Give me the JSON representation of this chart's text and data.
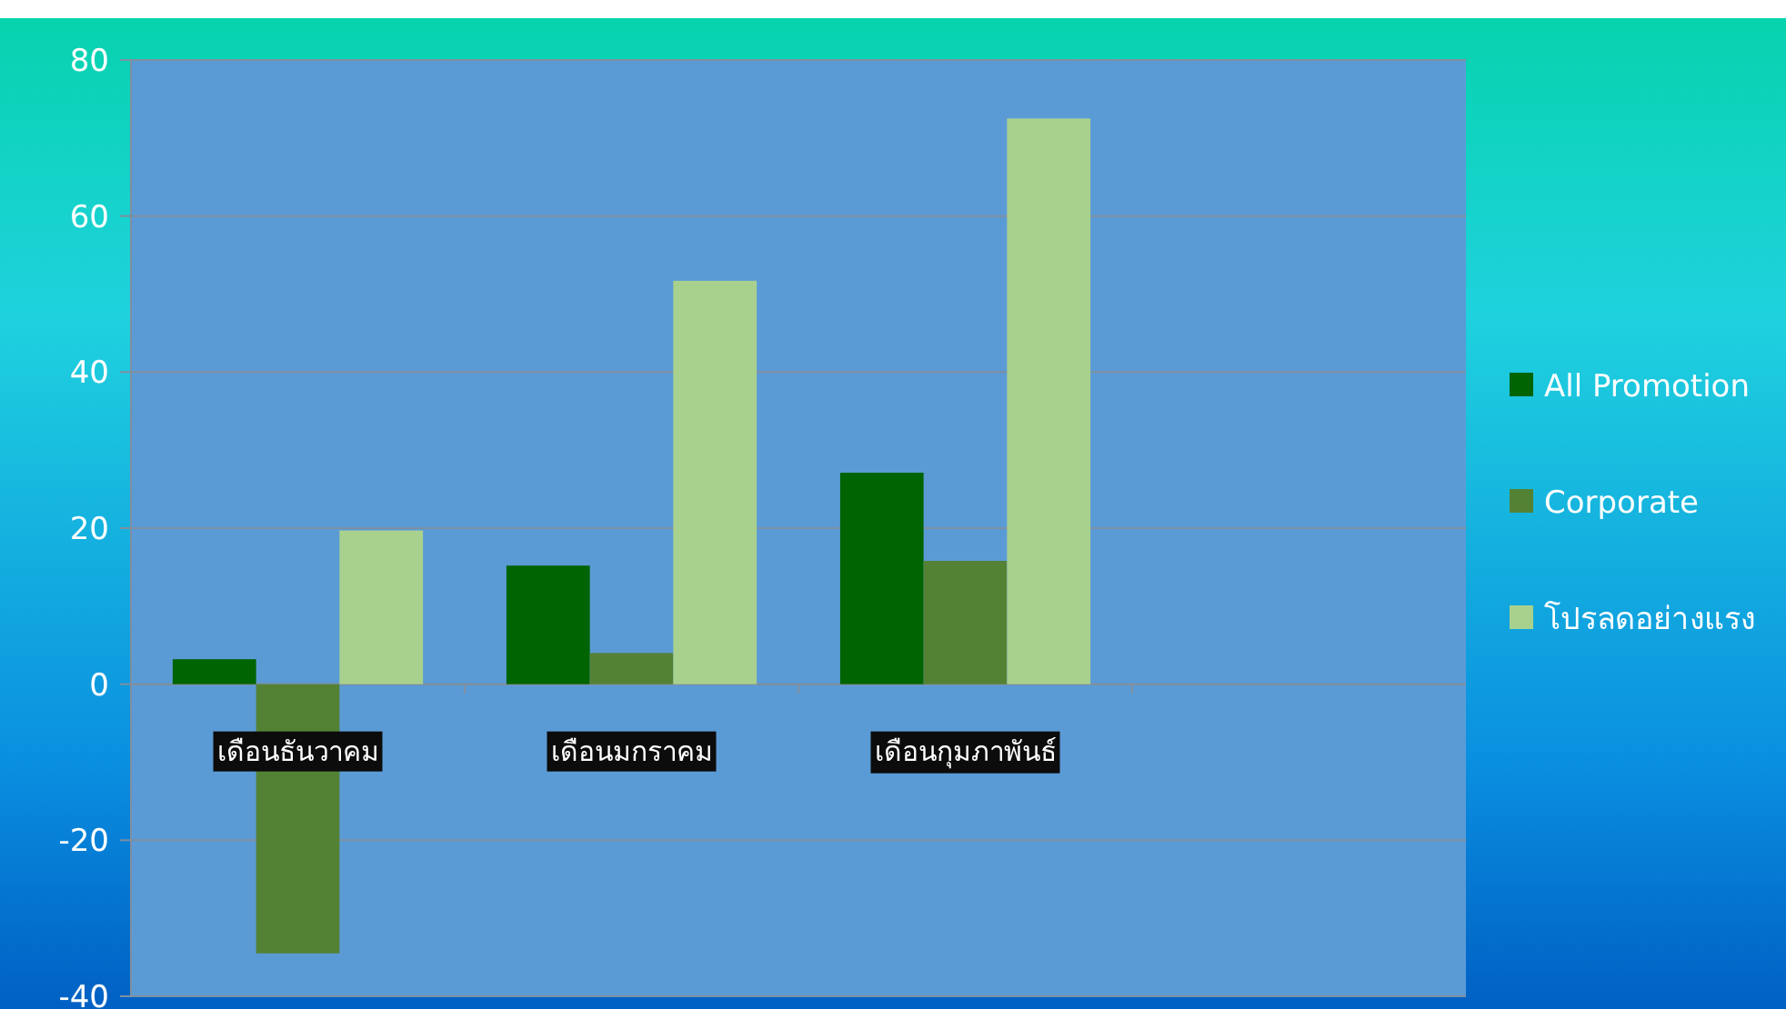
{
  "chart_data": {
    "type": "bar",
    "categories": [
      "เดือนธันวาคม",
      "เดือนมกราคม",
      "เดือนกุมภาพันธ์",
      null
    ],
    "series": [
      {
        "name": "All Promotion",
        "color": "#006400",
        "values": [
          3.2,
          15.2,
          27.1,
          null
        ]
      },
      {
        "name": "Corporate",
        "color": "#548235",
        "values": [
          -34.5,
          4,
          15.8,
          null
        ]
      },
      {
        "name": "โปรลดอย่างแรง",
        "color": "#a9d18e",
        "values": [
          19.7,
          51.7,
          72.5,
          null
        ]
      }
    ],
    "ylim": [
      -40,
      80
    ],
    "yticks": [
      -40,
      -20,
      0,
      20,
      40,
      60,
      80
    ],
    "grid": "y",
    "legend": "right"
  }
}
